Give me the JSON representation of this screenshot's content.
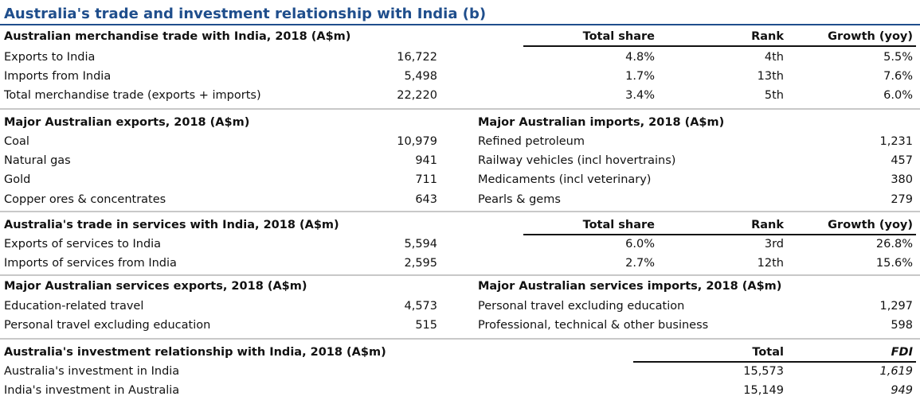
{
  "title": "Australia's trade and investment relationship with India (b)",
  "merch": {
    "heading": "Australian merchandise trade with India, 2018 (A$m)",
    "col_share": "Total share",
    "col_rank": "Rank",
    "col_growth": "Growth (yoy)",
    "rows": [
      {
        "label": "Exports to India",
        "value": "16,722",
        "share": "4.8%",
        "rank": "4th",
        "growth": "5.5%"
      },
      {
        "label": "Imports from India",
        "value": "5,498",
        "share": "1.7%",
        "rank": "13th",
        "growth": "7.6%"
      },
      {
        "label": "Total merchandise trade (exports + imports)",
        "value": "22,220",
        "share": "3.4%",
        "rank": "5th",
        "growth": "6.0%"
      }
    ]
  },
  "major": {
    "exports_heading": "Major Australian exports, 2018 (A$m)",
    "imports_heading": "Major Australian imports, 2018 (A$m)",
    "exports": [
      {
        "label": "Coal",
        "value": "10,979"
      },
      {
        "label": "Natural gas",
        "value": "941"
      },
      {
        "label": "Gold",
        "value": "711"
      },
      {
        "label": "Copper ores & concentrates",
        "value": "643"
      }
    ],
    "imports": [
      {
        "label": "Refined petroleum",
        "value": "1,231"
      },
      {
        "label": "Railway vehicles (incl hovertrains)",
        "value": "457"
      },
      {
        "label": "Medicaments (incl veterinary)",
        "value": "380"
      },
      {
        "label": "Pearls & gems",
        "value": "279"
      }
    ]
  },
  "services": {
    "heading": "Australia's trade in services with India, 2018 (A$m)",
    "col_share": "Total share",
    "col_rank": "Rank",
    "col_growth": "Growth (yoy)",
    "rows": [
      {
        "label": "Exports of services to India",
        "value": "5,594",
        "share": "6.0%",
        "rank": "3rd",
        "growth": "26.8%"
      },
      {
        "label": "Imports of services from India",
        "value": "2,595",
        "share": "2.7%",
        "rank": "12th",
        "growth": "15.6%"
      }
    ]
  },
  "major_services": {
    "exports_heading": "Major Australian services exports, 2018 (A$m)",
    "imports_heading": "Major Australian services imports, 2018 (A$m)",
    "exports": [
      {
        "label": "Education-related travel",
        "value": "4,573"
      },
      {
        "label": "Personal travel excluding education",
        "value": "515"
      }
    ],
    "imports": [
      {
        "label": "Personal travel excluding education",
        "value": "1,297"
      },
      {
        "label": "Professional, technical & other business",
        "value": "598"
      }
    ]
  },
  "investment": {
    "heading": "Australia's investment relationship with India, 2018 (A$m)",
    "col_total": "Total",
    "col_fdi": "FDI",
    "rows": [
      {
        "label": "Australia's investment in India",
        "total": "15,573",
        "fdi": "1,619"
      },
      {
        "label": "India's investment in Australia",
        "total": "15,149",
        "fdi": "949"
      }
    ]
  }
}
